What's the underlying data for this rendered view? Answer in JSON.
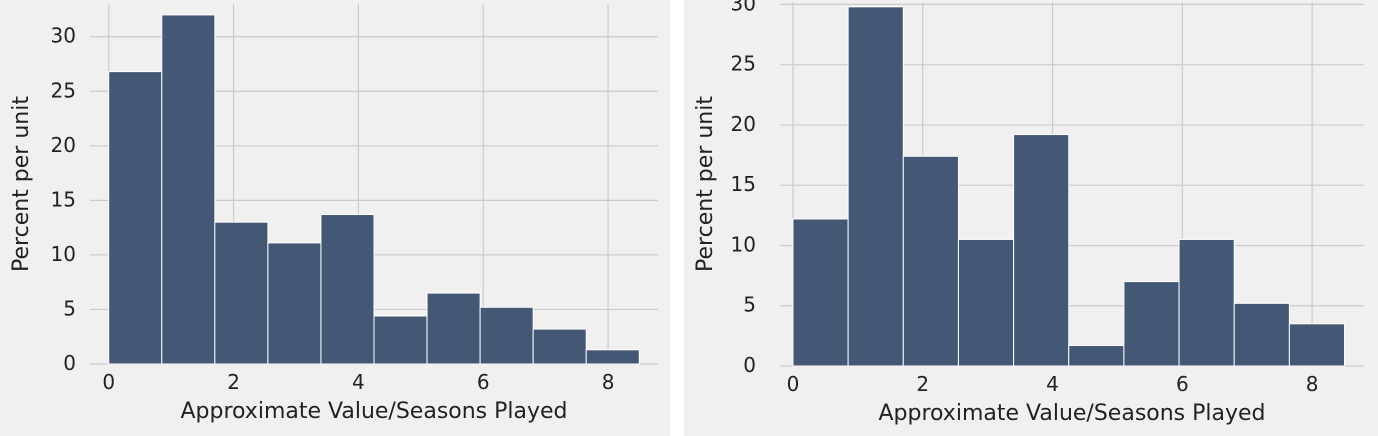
{
  "chart_data": [
    {
      "type": "bar",
      "title": "",
      "xlabel": "Approximate Value/Seasons Played",
      "ylabel": "Percent per unit",
      "bin_edges": [
        0,
        0.85,
        1.7,
        2.55,
        3.4,
        4.25,
        5.1,
        5.95,
        6.8,
        7.65,
        8.5
      ],
      "values": [
        26.8,
        32.0,
        13.0,
        11.1,
        13.7,
        4.4,
        6.5,
        5.2,
        3.2,
        1.3
      ],
      "xlim": [
        -0.3,
        8.8
      ],
      "ylim": [
        0,
        33
      ],
      "xticks": [
        0,
        2,
        4,
        6,
        8
      ],
      "yticks": [
        0,
        5,
        10,
        15,
        20,
        25,
        30
      ],
      "grid": true,
      "colors": {
        "bar": "#445775",
        "bar_edge": "#ffffff",
        "background": "#f0f0f0",
        "grid": "#cbcbcb"
      }
    },
    {
      "type": "bar",
      "title": "",
      "xlabel": "Approximate Value/Seasons Played",
      "ylabel": "Percent per unit",
      "bin_edges": [
        0,
        0.85,
        1.7,
        2.55,
        3.4,
        4.25,
        5.1,
        5.95,
        6.8,
        7.65,
        8.5
      ],
      "values": [
        12.2,
        29.8,
        17.4,
        10.5,
        19.2,
        1.7,
        7.0,
        10.5,
        5.2,
        3.5
      ],
      "xlim": [
        -0.2,
        8.8
      ],
      "ylim": [
        0,
        30.2
      ],
      "xticks": [
        0,
        2,
        4,
        6,
        8
      ],
      "yticks": [
        0,
        5,
        10,
        15,
        20,
        25,
        30
      ],
      "grid": true,
      "colors": {
        "bar": "#445775",
        "bar_edge": "#ffffff",
        "background": "#f0f0f0",
        "grid": "#cbcbcb"
      }
    }
  ]
}
